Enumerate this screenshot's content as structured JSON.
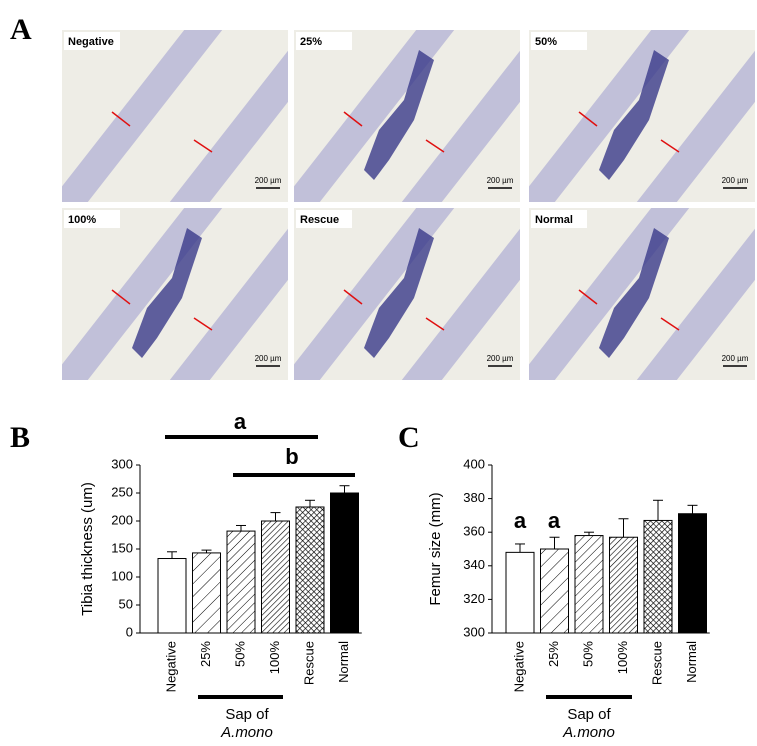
{
  "panel_a": {
    "label": "A",
    "images": [
      {
        "label": "Negative",
        "scale": "200 µm"
      },
      {
        "label": "25%",
        "scale": "200 µm"
      },
      {
        "label": "50%",
        "scale": "200 µm"
      },
      {
        "label": "100%",
        "scale": "200 µm"
      },
      {
        "label": "Rescue",
        "scale": "200 µm"
      },
      {
        "label": "Normal",
        "scale": "200 µm"
      }
    ]
  },
  "chart_data": [
    {
      "type": "bar",
      "panel_label": "B",
      "ylabel": "Tibia  thickness (um)",
      "categories": [
        "Negative",
        "25%",
        "50%",
        "100%",
        "Rescue",
        "Normal"
      ],
      "values": [
        133,
        143,
        182,
        200,
        225,
        250
      ],
      "errors": [
        12,
        5,
        10,
        15,
        12,
        13
      ],
      "patterns": [
        "none",
        "hatch-sparse",
        "hatch",
        "hatch-dense",
        "crosshatch",
        "solid"
      ],
      "ylim": [
        0,
        300
      ],
      "yticks": [
        0,
        50,
        100,
        150,
        200,
        250,
        300
      ],
      "annotations": [
        "a",
        "b"
      ],
      "group_label": [
        "Sap of",
        "A.mono"
      ]
    },
    {
      "type": "bar",
      "panel_label": "C",
      "ylabel": "Femur size (mm)",
      "categories": [
        "Negative",
        "25%",
        "50%",
        "100%",
        "Rescue",
        "Normal"
      ],
      "values": [
        348,
        350,
        358,
        357,
        367,
        371
      ],
      "errors": [
        5,
        7,
        2,
        11,
        12,
        5
      ],
      "patterns": [
        "none",
        "hatch-sparse",
        "hatch",
        "hatch-dense",
        "crosshatch",
        "solid"
      ],
      "ylim": [
        300,
        400
      ],
      "yticks": [
        300,
        320,
        340,
        360,
        380,
        400
      ],
      "annotations": [
        "a",
        "a"
      ],
      "group_label": [
        "Sap of",
        "A.mono"
      ]
    }
  ]
}
